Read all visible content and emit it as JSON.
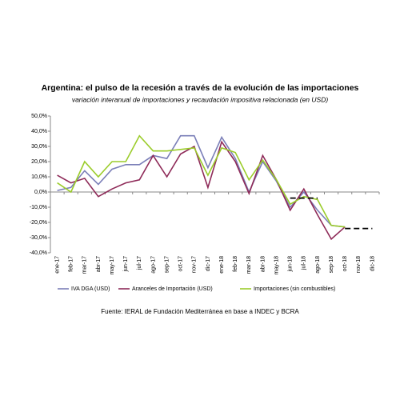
{
  "chart_data": {
    "type": "line",
    "title": "Argentina: el pulso de la recesión a través de la evolución de las importaciones",
    "subtitle": "variación interanual de importaciones y recaudación impositiva relacionada (en USD)",
    "source": "Fuente: IERAL de Fundación Mediterránea en base a INDEC y BCRA",
    "categories": [
      "ene-17",
      "feb-17",
      "mar-17",
      "abr-17",
      "may-17",
      "jun-17",
      "jul-17",
      "ago-17",
      "sep-17",
      "oct-17",
      "nov-17",
      "dic-17",
      "ene-18",
      "feb-18",
      "mar-18",
      "abr-18",
      "may-18",
      "jun-18",
      "jul-18",
      "ago-18",
      "sep-18",
      "oct-18",
      "nov-18",
      "dic-18"
    ],
    "series": [
      {
        "name": "IVA DGA (USD)",
        "color": "#7b7fb8",
        "values": [
          1,
          3,
          14,
          5,
          15,
          18,
          18,
          24,
          22,
          37,
          37,
          16,
          36,
          22,
          0,
          20,
          7,
          -10,
          0,
          -12,
          -22,
          -23,
          null,
          null
        ]
      },
      {
        "name": "Aranceles de Importación (USD)",
        "color": "#8e2a58",
        "values": [
          11,
          6,
          9,
          -3,
          2,
          6,
          8,
          24,
          10,
          25,
          30,
          3,
          33,
          20,
          -1,
          24,
          8,
          -12,
          2,
          -15,
          -31,
          -23,
          null,
          null
        ]
      },
      {
        "name": "Importaciones (sin combustibles)",
        "color": "#9bcc2b",
        "values": [
          6,
          0,
          20,
          10,
          20,
          20,
          37,
          27,
          27,
          28,
          29,
          11,
          29,
          26,
          8,
          21,
          8,
          -8,
          -3,
          -5,
          -22,
          -23,
          null,
          null
        ]
      },
      {
        "color": "#000000",
        "dashed": true,
        "values": [
          null,
          null,
          null,
          null,
          null,
          null,
          null,
          null,
          null,
          null,
          null,
          null,
          null,
          null,
          null,
          null,
          null,
          -4,
          -4,
          -4,
          null,
          -24,
          -24,
          -24
        ]
      }
    ],
    "ylim": [
      -40,
      50
    ],
    "yticks": [
      {
        "value": -40,
        "label": "-40,0%"
      },
      {
        "value": -30,
        "label": "-30,0%"
      },
      {
        "value": -20,
        "label": "-20,0%"
      },
      {
        "value": -10,
        "label": "-10,0%"
      },
      {
        "value": 0,
        "label": "0,0%"
      },
      {
        "value": 10,
        "label": "10,0%"
      },
      {
        "value": 20,
        "label": "20,0%"
      },
      {
        "value": 30,
        "label": "30,0%"
      },
      {
        "value": 40,
        "label": "40,0%"
      },
      {
        "value": 50,
        "label": "50,0%"
      }
    ]
  }
}
